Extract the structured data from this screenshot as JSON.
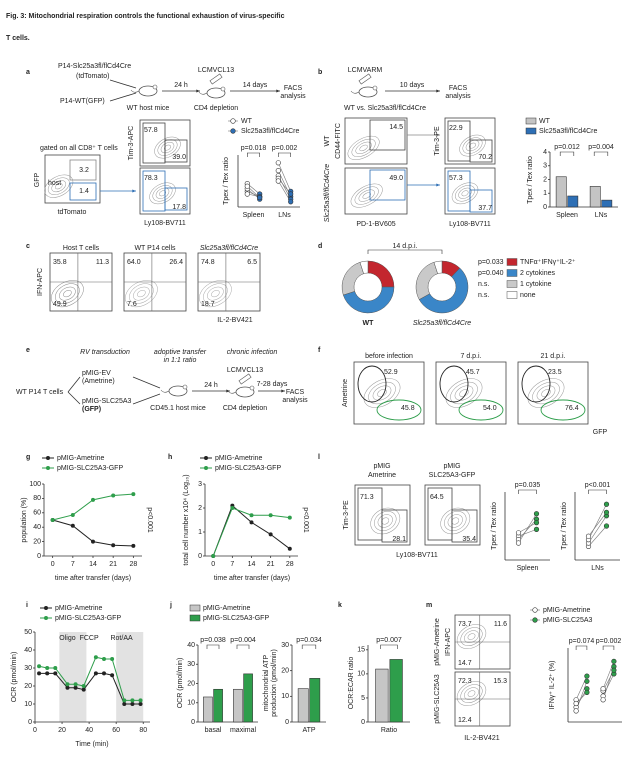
{
  "title": [
    "Fig. 3: Mitochondrial respiration controls the functional exhaustion of virus-specific",
    "T cells."
  ],
  "a": {
    "label": "a",
    "scheme": [
      "P14-Slc25a3fl/flCd4Cre",
      "(tdTomato)",
      "P14-WT(GFP)",
      "WT host mice",
      "24 h",
      "LCMVCL13",
      "CD4 depletion",
      "14 days",
      "FACS",
      "analysis"
    ],
    "gate": {
      "note": "gated on all CD8⁺ T cells",
      "host": "host",
      "gates": [
        "3.2",
        "1.4"
      ],
      "xlabel": "tdTomato",
      "ylabel": "GFP"
    },
    "flow": {
      "ylabel": "Tim-3-APC",
      "xlabel": "Ly108-BV711",
      "top": [
        "57.8",
        "39.0"
      ],
      "bottom": [
        "78.3",
        "17.8"
      ]
    },
    "paired": {
      "legend": [
        "WT",
        "Slc25a3fl/flCd4Cre"
      ],
      "colors": [
        "#ffffff",
        "#2e6fb5"
      ],
      "ylabel": "Tpex / Tex ratio",
      "categories": [
        "Spleen",
        "LNs"
      ],
      "pvalues": [
        "p=0.018",
        "p=0.002"
      ],
      "ylim": [
        0,
        1
      ],
      "groups": [
        {
          "before": [
            0.3,
            0.35,
            0.45,
            0.25,
            0.4
          ],
          "after": [
            0.2,
            0.15,
            0.25,
            0.2,
            0.18
          ]
        },
        {
          "before": [
            0.85,
            0.7,
            0.6,
            0.55,
            0.5
          ],
          "after": [
            0.3,
            0.2,
            0.15,
            0.25,
            0.1
          ]
        }
      ]
    }
  },
  "b": {
    "label": "b",
    "scheme": [
      "LCMVARM",
      "WT vs. Slc25a3fl/flCd4Cre",
      "10 days",
      "FACS",
      "analysis"
    ],
    "flow1": {
      "rows": [
        "WT",
        "Slc25a3fl/flCd4Cre"
      ],
      "ylabel": "CD44-FITC",
      "xlabel": "PD-1-BV605",
      "gates": [
        "14.5",
        "49.0"
      ]
    },
    "flow2": {
      "ylabel": "Tim-3-PE",
      "xlabel": "Ly108-BV711",
      "top": [
        "22.9",
        "70.2"
      ],
      "bottom": [
        "57.3",
        "37.7"
      ]
    },
    "bars": {
      "ylabel": "Tpex / Tex ratio",
      "categories": [
        "Spleen",
        "LNs"
      ],
      "pvalues": [
        "p=0.012",
        "p=0.004"
      ],
      "ylim": [
        0,
        4
      ],
      "yticks": [
        0,
        1,
        2,
        3,
        4
      ],
      "series": [
        {
          "name": "WT",
          "color": "#c4c4c4",
          "values": [
            2.2,
            1.5
          ]
        },
        {
          "name": "Slc25a3fl/flCd4Cre",
          "color": "#2e6fb5",
          "values": [
            0.8,
            0.5
          ]
        }
      ]
    }
  },
  "c": {
    "label": "c",
    "titles": [
      "Host T cells",
      "WT P14 cells",
      "Slc25a3fl/flCd4Cre"
    ],
    "ylabel": "IFN-APC",
    "xlabel": "IL-2-BV421",
    "plots": [
      [
        "35.8",
        "11.3",
        "49.9"
      ],
      [
        "64.0",
        "26.4",
        "7.6"
      ],
      [
        "74.8",
        "6.5",
        "18.7"
      ]
    ]
  },
  "d": {
    "label": "d",
    "title": "14 d.p.i.",
    "colors": [
      "#c3262e",
      "#3a86c8",
      "#c9c9c9",
      "#ffffff"
    ],
    "legend": [
      "TNFα⁺IFNγ⁺IL-2⁺",
      "2 cytokines",
      "1 cytokine",
      "none"
    ],
    "pvalues": [
      "p=0.033",
      "p=0.040",
      "n.s.",
      "n.s."
    ],
    "donuts": [
      {
        "name": "WT",
        "values": [
          25,
          45,
          25,
          5
        ]
      },
      {
        "name": "Slc25a3fl/flCd4Cre",
        "values": [
          12,
          55,
          28,
          5
        ]
      }
    ]
  },
  "e": {
    "label": "e",
    "scheme": [
      "WT P14 T cells",
      "RV transduction",
      "pMIG-EV",
      "(Ametrine)",
      "pMIG-SLC25A3",
      "(GFP)",
      "adoptive transfer",
      "in 1:1 ratio",
      "CD45.1 host mice",
      "LCMVCL13",
      "24 h",
      "CD4 depletion",
      "chronic infection",
      "7-28 days",
      "FACS",
      "analysis"
    ]
  },
  "f": {
    "label": "f",
    "titles": [
      "before infection",
      "7 d.p.i.",
      "21 d.p.i."
    ],
    "ylabel": "Ametrine",
    "xlabel": "GFP",
    "plots": [
      [
        "52.9",
        "45.8"
      ],
      [
        "45.7",
        "54.0"
      ],
      [
        "23.5",
        "76.4"
      ]
    ]
  },
  "g": {
    "label": "g",
    "ylabel": "population (%)",
    "xlabel": "time after transfer (days)",
    "annotation": "p<0.001",
    "x": [
      0,
      7,
      14,
      21,
      28
    ],
    "xlim": [
      -3,
      31
    ],
    "xticks": [
      0,
      7,
      14,
      21,
      28
    ],
    "ylim": [
      0,
      100
    ],
    "yticks": [
      0,
      20,
      40,
      60,
      80,
      100
    ],
    "series": [
      {
        "name": "pMIG-Ametrine",
        "color": "#222222",
        "values": [
          50,
          42,
          20,
          15,
          14
        ]
      },
      {
        "name": "pMIG-SLC25A3-GFP",
        "color": "#2e9e4b",
        "values": [
          50,
          57,
          78,
          84,
          86
        ]
      }
    ]
  },
  "h": {
    "label": "h",
    "ylabel": "total cell number x10⁴ (Log₁₀)",
    "xlabel": "time after transfer (days)",
    "annotation": "p<0.001",
    "x": [
      0,
      7,
      14,
      21,
      28
    ],
    "xlim": [
      -3,
      31
    ],
    "xticks": [
      0,
      7,
      14,
      21,
      28
    ],
    "ylim": [
      0,
      3
    ],
    "yticks": [
      0,
      1,
      2,
      3
    ],
    "series": [
      {
        "name": "pMIG-Ametrine",
        "color": "#222222",
        "values": [
          0,
          2.1,
          1.4,
          0.9,
          0.3
        ]
      },
      {
        "name": "pMIG-SLC25A3-GFP",
        "color": "#2e9e4b",
        "values": [
          0,
          2.0,
          1.7,
          1.7,
          1.6
        ]
      }
    ]
  },
  "l": {
    "label": "l",
    "titles": [
      [
        "pMIG",
        "Ametrine"
      ],
      [
        "pMIG",
        "SLC25A3-GFP"
      ]
    ],
    "ylabel": "Tim-3-PE",
    "xlabel": "Ly108-BV711",
    "plots": [
      [
        "71.3",
        "28.1"
      ],
      [
        "64.5",
        "35.4"
      ]
    ],
    "paired": [
      {
        "ylabel": "Tpex / Tex ratio",
        "categories": [
          "Spleen"
        ],
        "pvalues": [
          "p=0.035"
        ],
        "ylim": [
          0,
          1
        ],
        "colors": [
          "#ffffff",
          "#2e9e4b"
        ],
        "groups": [
          {
            "before": [
              0.35,
              0.3,
              0.25,
              0.4
            ],
            "after": [
              0.45,
              0.6,
              0.68,
              0.55
            ]
          }
        ]
      },
      {
        "ylabel": "Tpex / Tex ratio",
        "categories": [
          "LNs"
        ],
        "pvalues": [
          "p<0.001"
        ],
        "ylim": [
          0,
          1
        ],
        "colors": [
          "#ffffff",
          "#2e9e4b"
        ],
        "groups": [
          {
            "before": [
              0.2,
              0.25,
              0.3,
              0.35
            ],
            "after": [
              0.5,
              0.65,
              0.82,
              0.7
            ]
          }
        ]
      }
    ]
  },
  "i": {
    "label": "i",
    "ylabel": "OCR (pmol/min)",
    "xlabel": "Time (min)",
    "injections": [
      "Oligo",
      "FCCP",
      "Rot/AA"
    ],
    "x": [
      3,
      9,
      15,
      24,
      30,
      36,
      45,
      51,
      57,
      66,
      72,
      78
    ],
    "xlim": [
      0,
      85
    ],
    "xticks": [
      0,
      20,
      40,
      60,
      80
    ],
    "ylim": [
      0,
      50
    ],
    "yticks": [
      0,
      10,
      20,
      30,
      40,
      50
    ],
    "series": [
      {
        "name": "pMIG-Ametrine",
        "color": "#222222",
        "values": [
          27,
          27,
          27,
          19,
          19,
          18,
          27,
          27,
          26,
          10,
          10,
          10
        ]
      },
      {
        "name": "pMIG-SLC25A3-GFP",
        "color": "#2e9e4b",
        "values": [
          31,
          30,
          30,
          21,
          21,
          20,
          36,
          35,
          35,
          12,
          12,
          12
        ]
      }
    ]
  },
  "j": {
    "label": "j",
    "legend": [
      "pMIG-Ametrine",
      "pMIG-SLC25A3-GFP"
    ],
    "bars1": {
      "ylabel": "OCR (pmol/min)",
      "categories": [
        "basal",
        "maximal"
      ],
      "pvalues": [
        "p=0.038",
        "p=0.004"
      ],
      "ylim": [
        0,
        40
      ],
      "yticks": [
        0,
        10,
        20,
        30,
        40
      ],
      "series": [
        {
          "color": "#c6c6c6",
          "values": [
            13,
            17
          ]
        },
        {
          "color": "#2e9e4b",
          "values": [
            17,
            25
          ]
        }
      ]
    },
    "bars2": {
      "ylabel": [
        "mitochondrial ATP",
        "production (pmol/min)"
      ],
      "categories": [
        "ATP"
      ],
      "pvalues": [
        "p=0.034"
      ],
      "ylim": [
        0,
        30
      ],
      "yticks": [
        0,
        10,
        20,
        30
      ],
      "series": [
        {
          "color": "#c6c6c6",
          "values": [
            13
          ]
        },
        {
          "color": "#2e9e4b",
          "values": [
            17
          ]
        }
      ]
    }
  },
  "k": {
    "label": "k",
    "bars": {
      "ylabel": "OCR:ECAR ratio",
      "categories": [
        "Ratio"
      ],
      "pvalues": [
        "p=0.007"
      ],
      "ylim": [
        0,
        16
      ],
      "yticks": [
        0,
        5,
        10,
        15
      ],
      "series": [
        {
          "color": "#c6c6c6",
          "values": [
            11
          ]
        },
        {
          "color": "#2e9e4b",
          "values": [
            13
          ]
        }
      ]
    }
  },
  "m": {
    "label": "m",
    "rows": [
      "pMIG-Ametrine",
      "pMIG-SLC25A3"
    ],
    "ylabel": "IFN-APC",
    "xlabel": "IL-2-BV421",
    "plots": [
      [
        "73.7",
        "11.6",
        "14.7"
      ],
      [
        "72.3",
        "15.3",
        "12.4"
      ]
    ],
    "paired": {
      "legend": [
        "pMIG-Ametrine",
        "pMIG-SLC25A3"
      ],
      "colors": [
        "#ffffff",
        "#2e9e4b"
      ],
      "ylabel": "IFNγ⁺ IL-2⁺ (%)",
      "pvalues": [
        "p=0.074",
        "p=0.002"
      ],
      "ylim": [
        0,
        1
      ],
      "groups": [
        {
          "before": [
            0.2,
            0.15,
            0.3,
            0.25
          ],
          "after": [
            0.45,
            0.55,
            0.62,
            0.4
          ]
        },
        {
          "before": [
            0.35,
            0.3,
            0.42,
            0.45
          ],
          "after": [
            0.65,
            0.75,
            0.7,
            0.82
          ]
        }
      ]
    }
  }
}
